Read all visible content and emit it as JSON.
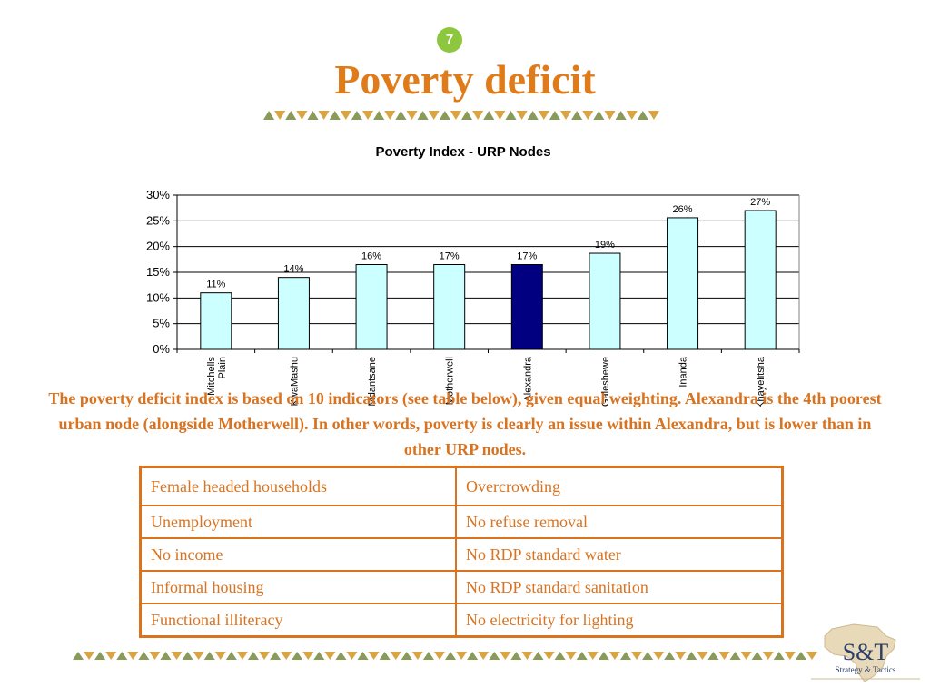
{
  "slide": {
    "number": "7",
    "title": "Poverty deficit",
    "description": "The poverty deficit index is based on 10 indicators (see table below), given equal weighting. Alexandra is the 4th poorest urban node (alongside Motherwell). In other words, poverty is clearly an issue within Alexandra, but is lower than in other URP nodes."
  },
  "colors": {
    "accent": "#d9731f",
    "bar_default": "#ccffff",
    "bar_highlight": "#000080",
    "badge": "#8dc63f"
  },
  "chart_data": {
    "type": "bar",
    "title": "Poverty Index - URP Nodes",
    "categories": [
      "Mitchells Plain",
      "KwaMashu",
      "Mdantsane",
      "Motherwell",
      "Alexandra",
      "Galeshewe",
      "Inanda",
      "Khayelitsha"
    ],
    "category_lines": [
      [
        "Mitchells",
        "Plain"
      ],
      [
        "KwaMashu"
      ],
      [
        "Mdantsane"
      ],
      [
        "Motherwell"
      ],
      [
        "Alexandra"
      ],
      [
        "Galeshewe"
      ],
      [
        "Inanda"
      ],
      [
        "Khayelitsha"
      ]
    ],
    "values": [
      0.11,
      0.14,
      0.165,
      0.165,
      0.165,
      0.187,
      0.256,
      0.27
    ],
    "data_labels": [
      "11%",
      "14%",
      "16%",
      "17%",
      "17%",
      "19%",
      "26%",
      "27%"
    ],
    "highlight_index": 4,
    "ylim": [
      0,
      0.3
    ],
    "yticks": [
      0,
      0.05,
      0.1,
      0.15,
      0.2,
      0.25,
      0.3
    ],
    "ytick_labels": [
      "0%",
      "5%",
      "10%",
      "15%",
      "20%",
      "25%",
      "30%"
    ],
    "grid": true,
    "legend": false,
    "xlabel": "",
    "ylabel": ""
  },
  "indicators": [
    [
      "Female headed households",
      "Overcrowding"
    ],
    [
      "Unemployment",
      "No refuse removal"
    ],
    [
      "No income",
      "No RDP standard water"
    ],
    [
      "Informal housing",
      "No RDP standard sanitation"
    ],
    [
      "Functional illiteracy",
      "No electricity for lighting"
    ]
  ],
  "logo": {
    "mark": "S&T",
    "tagline": "Strategy & Tactics",
    "icon": "africa-map-icon"
  }
}
